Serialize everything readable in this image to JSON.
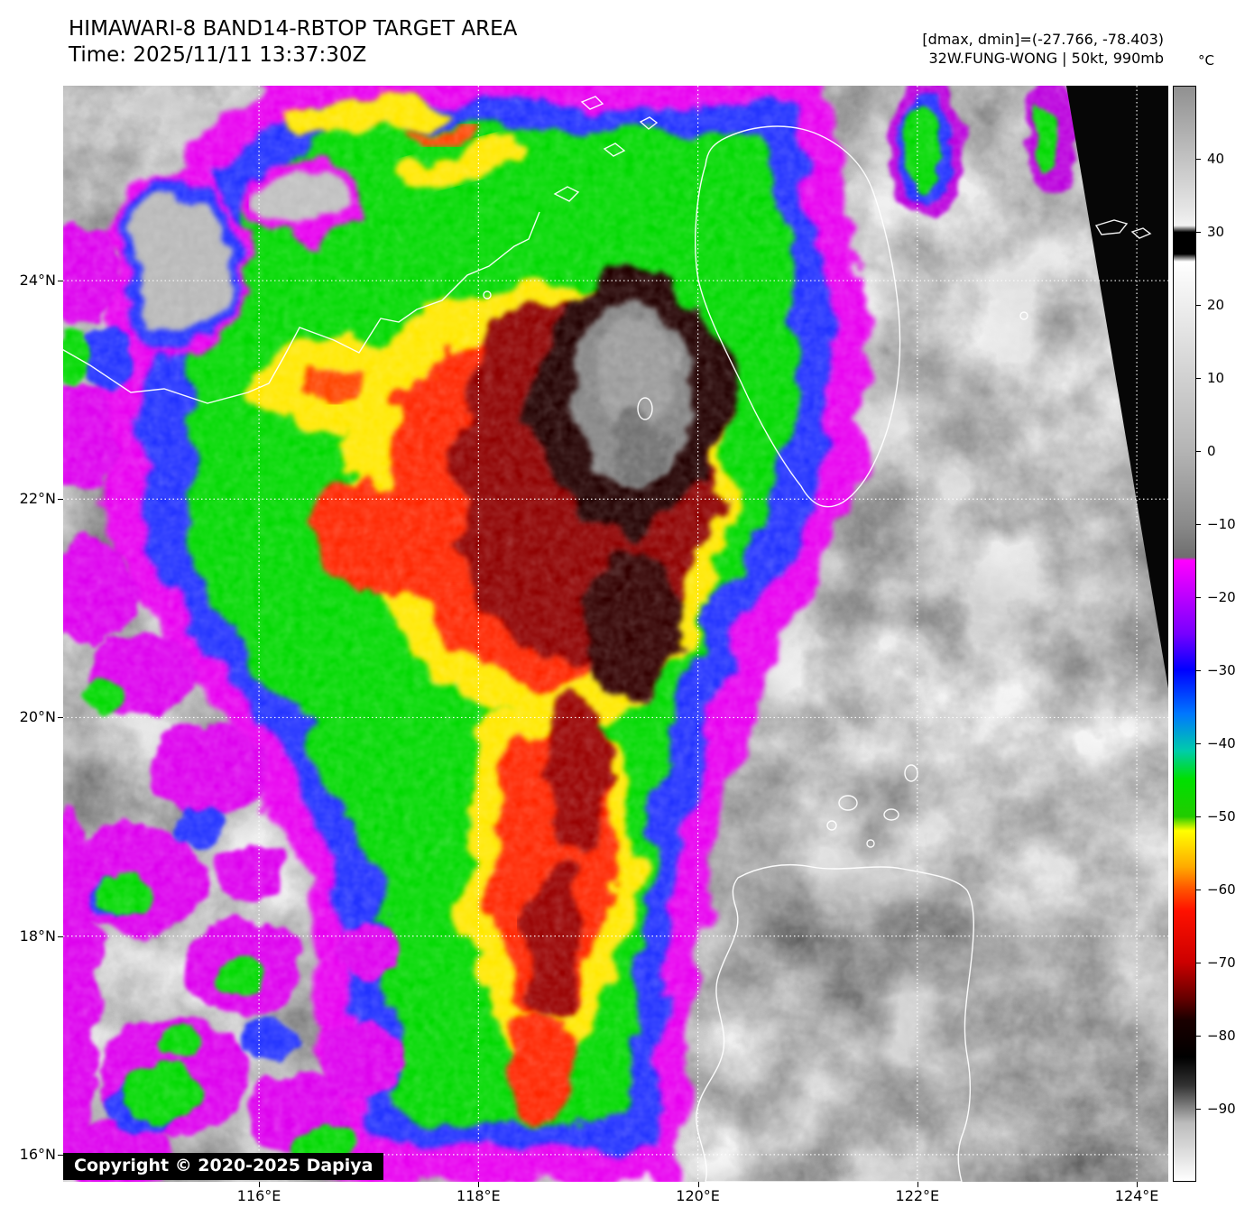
{
  "header": {
    "title": "HIMAWARI-8 BAND14-RBTOP TARGET AREA",
    "time_line": "Time: 2025/11/11 13:37:30Z",
    "dmax_dmin": "[dmax, dmin]=(-27.766, -78.403)",
    "storm_info": "32W.FUNG-WONG | 50kt, 990mb"
  },
  "map": {
    "copyright": "Copyright © 2020-2025 Dapiya",
    "lat_ticks": [
      {
        "label": "24°N",
        "value": 24
      },
      {
        "label": "22°N",
        "value": 22
      },
      {
        "label": "20°N",
        "value": 20
      },
      {
        "label": "18°N",
        "value": 18
      },
      {
        "label": "16°N",
        "value": 16
      }
    ],
    "lon_ticks": [
      {
        "label": "116°E",
        "value": 116
      },
      {
        "label": "118°E",
        "value": 118
      },
      {
        "label": "120°E",
        "value": 120
      },
      {
        "label": "122°E",
        "value": 122
      },
      {
        "label": "124°E",
        "value": 124
      }
    ]
  },
  "colorbar": {
    "unit": "°C",
    "ticks": [
      {
        "label": "40",
        "value": 40
      },
      {
        "label": "30",
        "value": 30
      },
      {
        "label": "20",
        "value": 20
      },
      {
        "label": "10",
        "value": 10
      },
      {
        "label": "0",
        "value": 0
      },
      {
        "label": "−10",
        "value": -10
      },
      {
        "label": "−20",
        "value": -20
      },
      {
        "label": "−30",
        "value": -30
      },
      {
        "label": "−40",
        "value": -40
      },
      {
        "label": "−50",
        "value": -50
      },
      {
        "label": "−60",
        "value": -60
      },
      {
        "label": "−70",
        "value": -70
      },
      {
        "label": "−80",
        "value": -80
      },
      {
        "label": "−90",
        "value": -90
      }
    ],
    "gradient": [
      {
        "p": 0.0,
        "c": "#909090"
      },
      {
        "p": 0.113,
        "c": "#e6e6e6"
      },
      {
        "p": 0.127,
        "c": "#f2f2f2"
      },
      {
        "p": 0.133,
        "c": "#000000"
      },
      {
        "p": 0.153,
        "c": "#000000"
      },
      {
        "p": 0.16,
        "c": "#ffffff"
      },
      {
        "p": 0.333,
        "c": "#b4b4b4"
      },
      {
        "p": 0.4,
        "c": "#8a8a8a"
      },
      {
        "p": 0.43,
        "c": "#6e6e6e"
      },
      {
        "p": 0.433,
        "c": "#ff00ff"
      },
      {
        "p": 0.5,
        "c": "#7700ff"
      },
      {
        "p": 0.533,
        "c": "#0000ff"
      },
      {
        "p": 0.573,
        "c": "#0077ff"
      },
      {
        "p": 0.607,
        "c": "#00ccaa"
      },
      {
        "p": 0.633,
        "c": "#00e000"
      },
      {
        "p": 0.667,
        "c": "#22cc00"
      },
      {
        "p": 0.68,
        "c": "#ffff00"
      },
      {
        "p": 0.713,
        "c": "#ffaa00"
      },
      {
        "p": 0.733,
        "c": "#ff5500"
      },
      {
        "p": 0.753,
        "c": "#ff1100"
      },
      {
        "p": 0.8,
        "c": "#cc0000"
      },
      {
        "p": 0.833,
        "c": "#660000"
      },
      {
        "p": 0.853,
        "c": "#1a0000"
      },
      {
        "p": 0.887,
        "c": "#000000"
      },
      {
        "p": 0.913,
        "c": "#333333"
      },
      {
        "p": 0.947,
        "c": "#bbbbbb"
      },
      {
        "p": 1.0,
        "c": "#ffffff"
      }
    ]
  }
}
